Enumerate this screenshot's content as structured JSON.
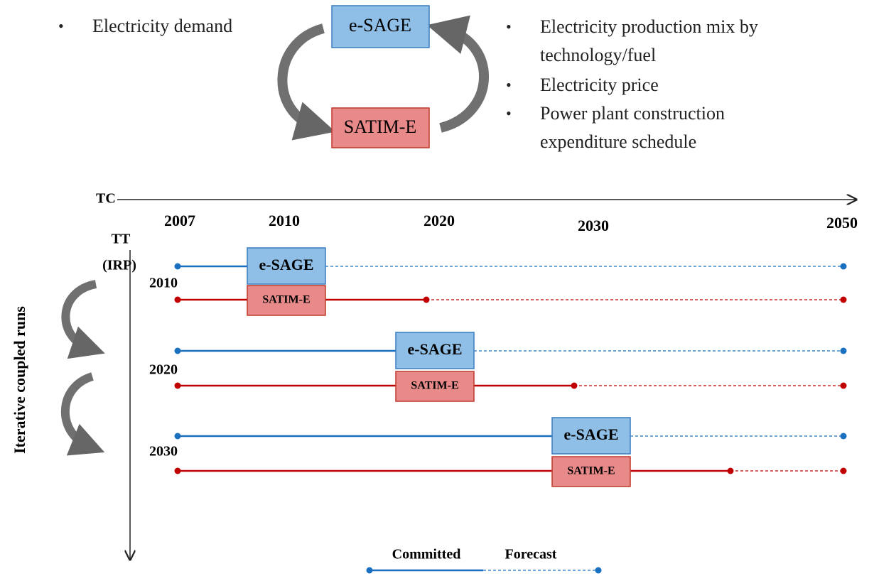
{
  "top": {
    "left_bullets": [
      "Electricity demand"
    ],
    "box_top": "e-SAGE",
    "box_bottom": "SATIM-E",
    "right_bullets": [
      "Electricity production mix by technology/fuel",
      "Electricity price",
      "Power plant construction expenditure schedule"
    ]
  },
  "timeline": {
    "axis_label": "TC",
    "years": [
      "2007",
      "2010",
      "2020",
      "2030",
      "2050"
    ],
    "vertical_label": [
      "TT",
      "(IRP)"
    ],
    "side_label": "Iterative coupled runs",
    "runs": [
      {
        "year": "2010",
        "esage": "e-SAGE",
        "satim": "SATIM-E"
      },
      {
        "year": "2020",
        "esage": "e-SAGE",
        "satim": "SATIM-E"
      },
      {
        "year": "2030",
        "esage": "e-SAGE",
        "satim": "SATIM-E"
      }
    ],
    "legend": {
      "committed": "Committed",
      "forecast": "Forecast"
    }
  }
}
